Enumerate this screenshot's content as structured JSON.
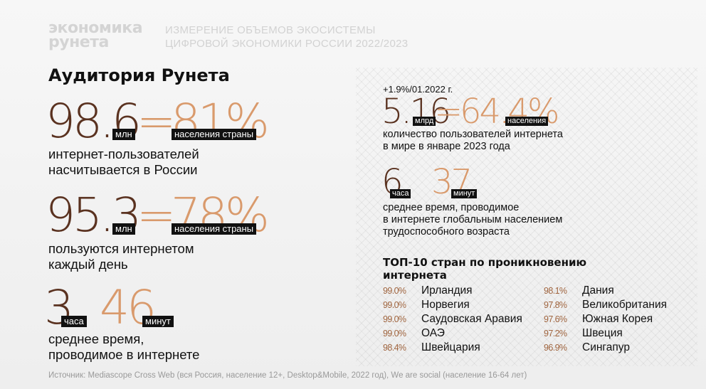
{
  "header": {
    "logo_line1": "экономика",
    "logo_line2": "рунета",
    "title_line1": "ИЗМЕРЕНИЕ ОБЪЕМОВ ЭКОСИСТЕМЫ",
    "title_line2": "ЦИФРОВОЙ ЭКОНОМИКИ РОССИИ 2022/2023"
  },
  "section_title": "Аудитория Рунета",
  "left": {
    "stat1": {
      "value": "98.6",
      "unit": "млн",
      "eq": "=",
      "percent": "81%",
      "percent_tag": "населения страны",
      "desc_line1": "интернет-пользователей",
      "desc_line2": "насчитывается в России"
    },
    "stat2": {
      "value": "95.3",
      "unit": "млн",
      "eq": "=",
      "percent": "78%",
      "percent_tag": "населения страны",
      "desc_line1": "пользуются интернетом",
      "desc_line2": "каждый день"
    },
    "stat3": {
      "hours": "3",
      "hours_tag": "часа",
      "minutes": "46",
      "minutes_tag": "минут",
      "desc_line1": "среднее время,",
      "desc_line2": "проводимое в интернете"
    }
  },
  "right": {
    "note": "+1.9%/01.2022 г.",
    "stat1": {
      "value": "5.16",
      "unit": "млрд",
      "eq": "=",
      "percent": "64.4%",
      "percent_tag": "населения",
      "desc_line1": "количество пользователей интернета",
      "desc_line2": "в мире в январе 2023 года"
    },
    "stat2": {
      "hours": "6",
      "hours_tag": "часа",
      "minutes": "37",
      "minutes_tag": "минут",
      "desc_line1": "среднее время, проводимое",
      "desc_line2": "в интернете глобальным населением",
      "desc_line3": "трудоспособного возраста"
    },
    "top_title_line1": "ТОП-10 стран по проникновению",
    "top_title_line2": "интернета",
    "countries_col1": [
      {
        "pct": "99.0%",
        "name": "Ирландия"
      },
      {
        "pct": "99.0%",
        "name": "Норвегия"
      },
      {
        "pct": "99.0%",
        "name": "Саудовская Аравия"
      },
      {
        "pct": "99.0%",
        "name": "ОАЭ"
      },
      {
        "pct": "98.4%",
        "name": "Швейцария"
      }
    ],
    "countries_col2": [
      {
        "pct": "98.1%",
        "name": "Дания"
      },
      {
        "pct": "97.8%",
        "name": "Великобритания"
      },
      {
        "pct": "97.6%",
        "name": "Южная Корея"
      },
      {
        "pct": "97.2%",
        "name": "Швеция"
      },
      {
        "pct": "96.9%",
        "name": "Сингапур"
      }
    ]
  },
  "source": "Источник: Mediascope Cross Web (вся Россия, население 12+, Desktop&Mobile, 2022 год),  We are social (население 16-64 лет)"
}
